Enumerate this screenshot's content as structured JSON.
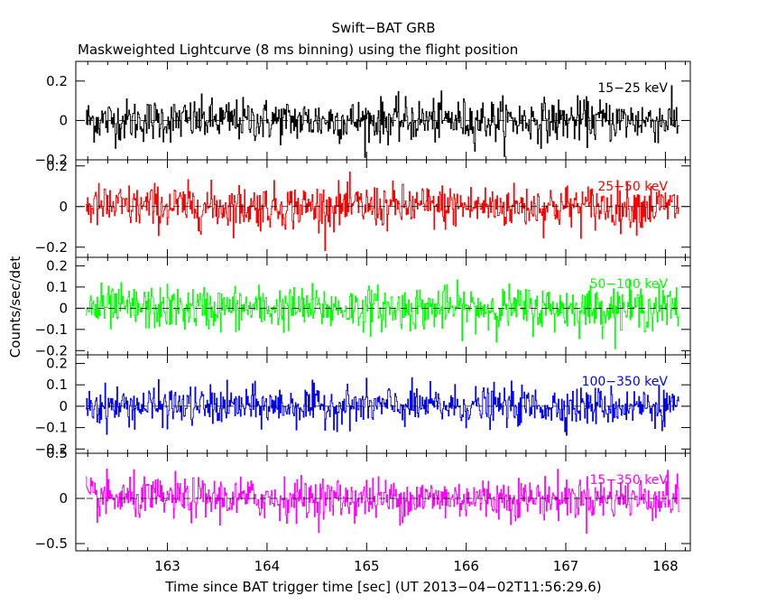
{
  "chart_data": {
    "type": "line",
    "title": "Swift−BAT GRB",
    "subtitle": "Maskweighted Lightcurve (8 ms binning) using the flight position",
    "xlabel": "Time since BAT trigger time [sec] (UT 2013−04−02T11:56:29.6)",
    "ylabel": "Counts/sec/det",
    "xlim": [
      162.08,
      168.25
    ],
    "x_ticks": [
      163,
      164,
      165,
      166,
      167,
      168
    ],
    "x_tick_labels": [
      "163",
      "164",
      "165",
      "166",
      "167",
      "168"
    ],
    "data_x_range": [
      162.18,
      168.14
    ],
    "bin_seconds": 0.008,
    "panels": [
      {
        "band": "15−25 keV",
        "color": "#000000",
        "ylim": [
          -0.2,
          0.3
        ],
        "y_ticks": [
          0.2,
          0,
          -0.2
        ],
        "y_tick_labels": [
          "0.2",
          "0",
          "−0.2"
        ],
        "noise_amplitude": 0.09
      },
      {
        "band": "25−50 keV",
        "color": "#ff0000",
        "ylim": [
          -0.25,
          0.23
        ],
        "y_ticks": [
          0.2,
          0,
          -0.2
        ],
        "y_tick_labels": [
          "0.2",
          "0",
          "−0.2"
        ],
        "noise_amplitude": 0.09
      },
      {
        "band": "50−100 keV",
        "color": "#00ff00",
        "ylim": [
          -0.22,
          0.24
        ],
        "y_ticks": [
          0.2,
          0.1,
          0,
          -0.1,
          -0.2
        ],
        "y_tick_labels": [
          "0.2",
          "0.1",
          "0",
          "−0.1",
          "−0.2"
        ],
        "noise_amplitude": 0.085
      },
      {
        "band": "100−350 keV",
        "color": "#0000ff",
        "ylim": [
          -0.22,
          0.24
        ],
        "y_ticks": [
          0.2,
          0.1,
          0,
          -0.1,
          -0.2
        ],
        "y_tick_labels": [
          "0.2",
          "0.1",
          "0",
          "−0.1",
          "−0.2"
        ],
        "noise_amplitude": 0.075
      },
      {
        "band": "15−350 keV",
        "color": "#ff00ff",
        "ylim": [
          -0.58,
          0.5
        ],
        "y_ticks": [
          0.5,
          0,
          -0.5
        ],
        "y_tick_labels": [
          "0.5",
          "0",
          "−0.5"
        ],
        "noise_amplitude": 0.19
      }
    ]
  }
}
